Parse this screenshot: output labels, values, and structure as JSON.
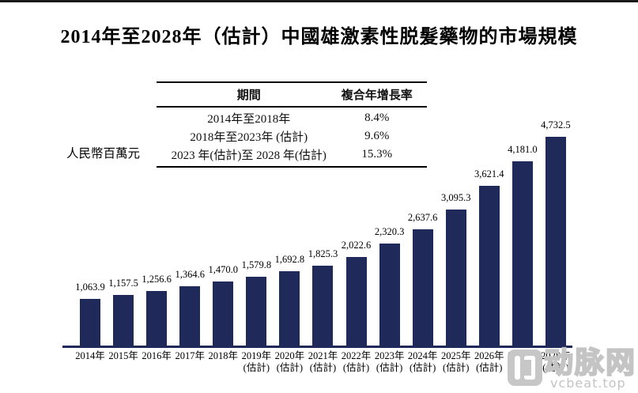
{
  "title": "2014年至2028年（估計）中國雄激素性脱髮藥物的市場規模",
  "y_axis_label": "人民幣百萬元",
  "table": {
    "headers": {
      "period": "期間",
      "cagr": "複合年增長率"
    },
    "rows": [
      {
        "period": "2014年至2018年",
        "cagr": "8.4%"
      },
      {
        "period": "2018年至2023年 (估計)",
        "cagr": "9.6%"
      },
      {
        "period": "2023 年(估計)至 2028 年(估計)",
        "cagr": "15.3%"
      }
    ]
  },
  "chart_data": {
    "type": "bar",
    "title": "2014年至2028年（估計）中國雄激素性脱髮藥物的市場規模",
    "ylabel": "人民幣百萬元",
    "xlabel": "",
    "ylim": [
      0,
      4732.5
    ],
    "grid": false,
    "legend": "none",
    "bar_color": "#1F2A5A",
    "categories": [
      {
        "label": "2014年",
        "note": ""
      },
      {
        "label": "2015年",
        "note": ""
      },
      {
        "label": "2016年",
        "note": ""
      },
      {
        "label": "2017年",
        "note": ""
      },
      {
        "label": "2018年",
        "note": ""
      },
      {
        "label": "2019年",
        "note": "(估計)"
      },
      {
        "label": "2020年",
        "note": "(估計)"
      },
      {
        "label": "2021年",
        "note": "(估計)"
      },
      {
        "label": "2022年",
        "note": "(估計)"
      },
      {
        "label": "2023年",
        "note": "(估計)"
      },
      {
        "label": "2024年",
        "note": "(估計)"
      },
      {
        "label": "2025年",
        "note": "(估計)"
      },
      {
        "label": "2026年",
        "note": "(估計)"
      },
      {
        "label": "2027年",
        "note": "(估計)"
      },
      {
        "label": "2028年",
        "note": "(估計)"
      }
    ],
    "values": [
      1063.9,
      1157.5,
      1256.6,
      1364.6,
      1470.0,
      1579.8,
      1692.8,
      1825.3,
      2022.6,
      2320.3,
      2637.6,
      3095.3,
      3621.4,
      4181.0,
      4732.5
    ],
    "value_labels": [
      "1,063.9",
      "1,157.5",
      "1,256.6",
      "1,364.6",
      "1,470.0",
      "1,579.8",
      "1,692.8",
      "1,825.3",
      "2,022.6",
      "2,320.3",
      "2,637.6",
      "3,095.3",
      "3,621.4",
      "4,181.0",
      "4,732.5"
    ]
  },
  "watermark": {
    "name": "动脉网",
    "site": "vcbeat.top",
    "color": "#c4c4c4"
  }
}
